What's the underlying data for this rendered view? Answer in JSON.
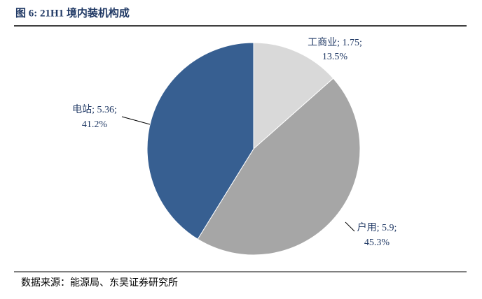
{
  "chart_data": {
    "type": "pie",
    "title": "图 6:  21H1 境内装机构成",
    "source": "数据来源：能源局、东吴证券研究所",
    "categories": [
      "工商业",
      "户用",
      "电站"
    ],
    "label_separator": "; ",
    "values": [
      1.75,
      5.9,
      5.36
    ],
    "value_labels": [
      "1.75;",
      "5.9;",
      "5.36;"
    ],
    "percents": [
      13.5,
      45.3,
      41.2
    ],
    "percent_labels": [
      "13.5%",
      "45.3%",
      "41.2%"
    ],
    "colors": [
      "#d9d9d9",
      "#a6a6a6",
      "#375f91"
    ]
  }
}
